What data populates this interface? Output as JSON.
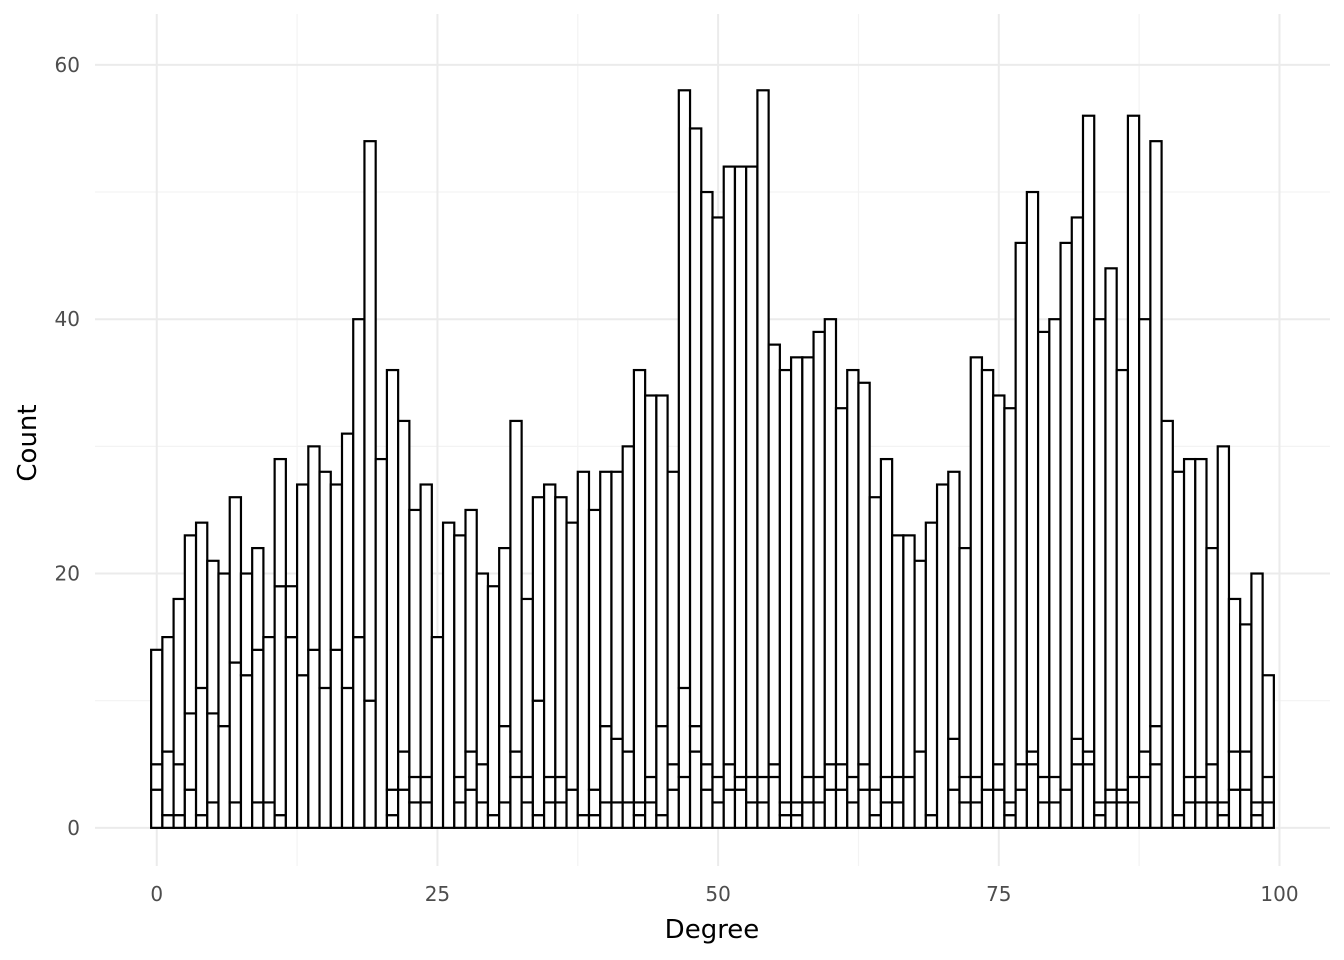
{
  "chart_data": {
    "type": "bar",
    "xlabel": "Degree",
    "ylabel": "Count",
    "xlim": [
      -5.5,
      104.5
    ],
    "ylim": [
      -3,
      64
    ],
    "x_ticks": [
      0,
      25,
      50,
      75,
      100
    ],
    "y_ticks": [
      0,
      20,
      40,
      60
    ],
    "grid": true,
    "legend": "none",
    "series": [
      {
        "values": [
          3,
          1,
          1,
          3,
          1,
          2,
          0,
          2,
          0,
          2,
          2,
          1,
          0,
          0,
          0,
          0,
          0,
          0,
          0,
          0,
          0,
          1,
          3,
          2,
          2,
          0,
          0,
          2,
          3,
          2,
          1,
          2,
          4,
          2,
          1,
          2,
          2,
          3,
          1,
          1,
          2,
          2,
          2,
          1,
          2,
          1,
          3,
          4,
          6,
          3,
          2,
          3,
          3,
          2,
          2,
          4,
          1,
          1,
          2,
          2,
          3,
          3,
          2,
          3,
          1,
          2,
          2,
          4,
          0,
          1,
          0,
          3,
          2,
          2,
          3,
          3,
          1,
          3,
          5,
          2,
          2,
          3,
          5,
          5,
          1,
          2,
          2,
          2,
          4,
          5,
          0,
          1,
          2,
          2,
          2,
          1,
          3,
          3,
          1,
          2
        ],
        "color": "#ffffff"
      },
      {
        "values": [
          2,
          5,
          4,
          6,
          10,
          7,
          8,
          11,
          12,
          12,
          0,
          18,
          15,
          12,
          14,
          11,
          14,
          11,
          15,
          10,
          0,
          2,
          3,
          2,
          2,
          0,
          0,
          2,
          3,
          3,
          0,
          6,
          2,
          2,
          9,
          2,
          2,
          0,
          0,
          2,
          6,
          5,
          4,
          1,
          2,
          7,
          2,
          7,
          2,
          2,
          2,
          2,
          1,
          2,
          2,
          1,
          1,
          1,
          2,
          2,
          2,
          2,
          2,
          2,
          2,
          2,
          2,
          0,
          6,
          0,
          0,
          4,
          2,
          2,
          0,
          2,
          1,
          2,
          1,
          2,
          2,
          0,
          2,
          1,
          1,
          1,
          1,
          2,
          2,
          3,
          0,
          0,
          2,
          2,
          3,
          1,
          3,
          3,
          1,
          2
        ]
      },
      {
        "values": [
          9,
          9,
          13,
          14,
          13,
          12,
          12,
          13,
          8,
          8,
          13,
          10,
          4,
          15,
          16,
          17,
          13,
          20,
          25,
          44,
          29,
          33,
          26,
          21,
          23,
          15,
          24,
          19,
          19,
          15,
          18,
          14,
          26,
          14,
          16,
          23,
          22,
          21,
          27,
          22,
          20,
          21,
          24,
          34,
          30,
          26,
          23,
          47,
          47,
          45,
          44,
          47,
          48,
          48,
          54,
          33,
          34,
          35,
          33,
          35,
          35,
          28,
          32,
          30,
          23,
          25,
          19,
          19,
          15,
          23,
          27,
          21,
          18,
          33,
          33,
          29,
          31,
          41,
          44,
          35,
          36,
          43,
          41,
          50,
          38,
          41,
          33,
          52,
          34,
          46,
          32,
          27,
          25,
          25,
          17,
          28,
          12,
          10,
          18,
          8
        ]
      }
    ]
  }
}
